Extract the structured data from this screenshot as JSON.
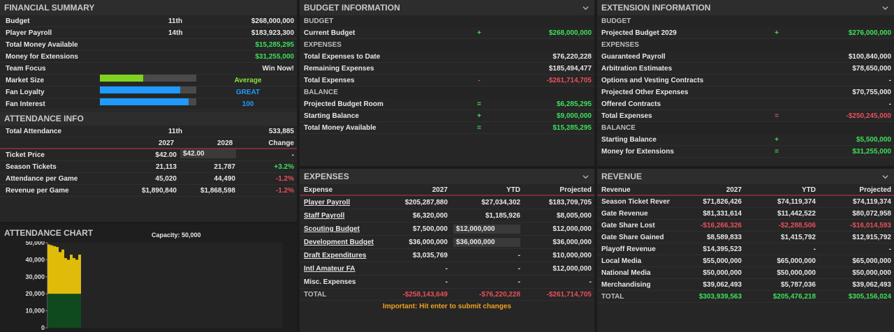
{
  "financial": {
    "title": "FINANCIAL SUMMARY",
    "rows": [
      {
        "label": "Budget",
        "rank": "11th",
        "value": "$268,000,000"
      },
      {
        "label": "Player Payroll",
        "rank": "14th",
        "value": "$183,923,300"
      },
      {
        "label": "Total Money Available",
        "rank": "",
        "value": "$15,285,295"
      },
      {
        "label": "Money for Extensions",
        "rank": "",
        "value": "$31,255,000"
      },
      {
        "label": "Team Focus",
        "rank": "",
        "value": "Win Now!"
      }
    ],
    "ratings": [
      {
        "label": "Market Size",
        "value": "Average",
        "level": 0.45,
        "color": "#7ed321"
      },
      {
        "label": "Fan Loyalty",
        "value": "GREAT",
        "level": 0.83,
        "color": "#1f9bff"
      },
      {
        "label": "Fan Interest",
        "value": "100",
        "level": 0.92,
        "color": "#1f9bff"
      }
    ]
  },
  "attendance": {
    "title": "ATTENDANCE INFO",
    "total_label": "Total Attendance",
    "total_rank": "11th",
    "total_value": "533,885",
    "cols": [
      "2027",
      "2028",
      "Change"
    ],
    "rows": [
      {
        "label": "Ticket Price",
        "a": "$42.00",
        "b": "$42.00",
        "c": "-",
        "b_input": true
      },
      {
        "label": "Season Tickets",
        "a": "21,113",
        "b": "21,787",
        "c": "+3.2%"
      },
      {
        "label": "Attendance per Game",
        "a": "45,020",
        "b": "44,490",
        "c": "-1.2%"
      },
      {
        "label": "Revenue per Game",
        "a": "$1,890,840",
        "b": "$1,868,598",
        "c": "-1.2%"
      }
    ]
  },
  "chart": {
    "title": "ATTENDANCE CHART",
    "capacity": "Capacity: 50,000",
    "chart_data": {
      "type": "bar",
      "title": "",
      "ylim": [
        0,
        50000
      ],
      "yticks": [
        "50,000",
        "40,000",
        "30,000",
        "20,000",
        "10,000",
        "0"
      ],
      "series": [
        {
          "values": [
            20000,
            20000,
            20000,
            20000,
            20000,
            20000,
            20000,
            20000,
            20000,
            20000,
            20000,
            20000
          ]
        },
        {
          "values": [
            29000,
            28500,
            28000,
            27500,
            24500,
            26000,
            21000,
            20000,
            23000,
            21000,
            20000,
            23000
          ]
        }
      ],
      "colors": [
        "#0e4a1e",
        "#e0bc0a"
      ]
    }
  },
  "budget": {
    "title": "BUDGET INFORMATION",
    "sections": [
      {
        "name": "BUDGET",
        "rows": [
          {
            "label": "Current Budget",
            "op": "+",
            "value": "$268,000,000",
            "color": "g"
          }
        ]
      },
      {
        "name": "EXPENSES",
        "rows": [
          {
            "label": "Total Expenses to Date",
            "op": "",
            "value": "$76,220,228",
            "color": ""
          },
          {
            "label": "Remaining Expenses",
            "op": "",
            "value": "$185,494,477",
            "color": ""
          },
          {
            "label": "Total Expenses",
            "op": "-",
            "value": "-$261,714,705",
            "color": "rd"
          }
        ]
      },
      {
        "name": "BALANCE",
        "rows": [
          {
            "label": "Projected Budget Room",
            "op": "=",
            "value": "$6,285,295",
            "color": "g"
          },
          {
            "label": "Starting Balance",
            "op": "+",
            "value": "$9,000,000",
            "color": "g"
          },
          {
            "label": "Total Money Available",
            "op": "=",
            "value": "$15,285,295",
            "color": "g"
          }
        ]
      }
    ]
  },
  "extension": {
    "title": "EXTENSION INFORMATION",
    "sections": [
      {
        "name": "BUDGET",
        "rows": [
          {
            "label": "Projected Budget 2029",
            "op": "+",
            "value": "$276,000,000",
            "color": "g"
          }
        ]
      },
      {
        "name": "EXPENSES",
        "rows": [
          {
            "label": "Guaranteed Payroll",
            "op": "",
            "value": "$100,840,000",
            "color": ""
          },
          {
            "label": "Arbitration Estimates",
            "op": "",
            "value": "$78,650,000",
            "color": ""
          },
          {
            "label": "Options and Vesting Contracts",
            "op": "",
            "value": "-",
            "color": ""
          },
          {
            "label": "Projected Other Expenses",
            "op": "",
            "value": "$70,755,000",
            "color": ""
          },
          {
            "label": "Offered Contracts",
            "op": "",
            "value": "-",
            "color": ""
          },
          {
            "label": "Total Expenses",
            "op": "=",
            "value": "-$250,245,000",
            "color": "rd"
          }
        ]
      },
      {
        "name": "BALANCE",
        "rows": [
          {
            "label": "Starting Balance",
            "op": "+",
            "value": "$5,500,000",
            "color": "g"
          },
          {
            "label": "Money for Extensions",
            "op": "=",
            "value": "$31,255,000",
            "color": "g"
          }
        ]
      }
    ]
  },
  "expenses": {
    "title": "EXPENSES",
    "cols": [
      "Expense",
      "2027",
      "YTD",
      "Projected"
    ],
    "rows": [
      {
        "label": "Player Payroll",
        "a": "$205,287,880",
        "b": "$27,034,302",
        "c": "$183,709,705",
        "link": true,
        "input": false
      },
      {
        "label": "Staff Payroll",
        "a": "$6,320,000",
        "b": "$1,185,926",
        "c": "$8,005,000",
        "link": true,
        "input": false
      },
      {
        "label": "Scouting Budget",
        "a": "$7,500,000",
        "b": "$12,000,000",
        "c": "$12,000,000",
        "link": true,
        "input": true
      },
      {
        "label": "Development Budget",
        "a": "$36,000,000",
        "b": "$36,000,000",
        "c": "$36,000,000",
        "link": true,
        "input": true
      },
      {
        "label": "Draft Expenditures",
        "a": "$3,035,769",
        "b": "-",
        "c": "$10,000,000",
        "link": true,
        "input": false
      },
      {
        "label": "Intl Amateur FA",
        "a": "-",
        "b": "-",
        "c": "$12,000,000",
        "link": true,
        "input": false
      },
      {
        "label": "Misc. Expenses",
        "a": "-",
        "b": "-",
        "c": "-",
        "link": false,
        "input": false
      }
    ],
    "total": {
      "label": "TOTAL",
      "a": "-$258,143,649",
      "b": "-$76,220,228",
      "c": "-$261,714,705"
    },
    "note": "Important: Hit enter to submit changes"
  },
  "revenue": {
    "title": "REVENUE",
    "cols": [
      "Revenue",
      "2027",
      "YTD",
      "Projected"
    ],
    "rows": [
      {
        "label": "Season Ticket Reveni",
        "a": "$71,826,426",
        "b": "$74,119,374",
        "c": "$74,119,374",
        "ac": "",
        "bc": "",
        "cc": ""
      },
      {
        "label": "Gate Revenue",
        "a": "$81,331,614",
        "b": "$11,442,522",
        "c": "$80,072,958",
        "ac": "",
        "bc": "",
        "cc": ""
      },
      {
        "label": "Gate Share Lost",
        "a": "-$16,266,326",
        "b": "-$2,288,506",
        "c": "-$16,014,593",
        "ac": "rd",
        "bc": "rd",
        "cc": "rd"
      },
      {
        "label": "Gate Share Gained",
        "a": "$8,589,833",
        "b": "$1,415,792",
        "c": "$12,915,792",
        "ac": "",
        "bc": "",
        "cc": ""
      },
      {
        "label": "Playoff Revenue",
        "a": "$14,395,523",
        "b": "-",
        "c": "-",
        "ac": "",
        "bc": "",
        "cc": ""
      },
      {
        "label": "Local Media",
        "a": "$55,000,000",
        "b": "$65,000,000",
        "c": "$65,000,000",
        "ac": "",
        "bc": "",
        "cc": ""
      },
      {
        "label": "National Media",
        "a": "$50,000,000",
        "b": "$50,000,000",
        "c": "$50,000,000",
        "ac": "",
        "bc": "",
        "cc": ""
      },
      {
        "label": "Merchandising",
        "a": "$39,062,493",
        "b": "$5,787,036",
        "c": "$39,062,493",
        "ac": "",
        "bc": "",
        "cc": ""
      }
    ],
    "total": {
      "label": "TOTAL",
      "a": "$303,939,563",
      "b": "$205,476,218",
      "c": "$305,156,024"
    }
  }
}
